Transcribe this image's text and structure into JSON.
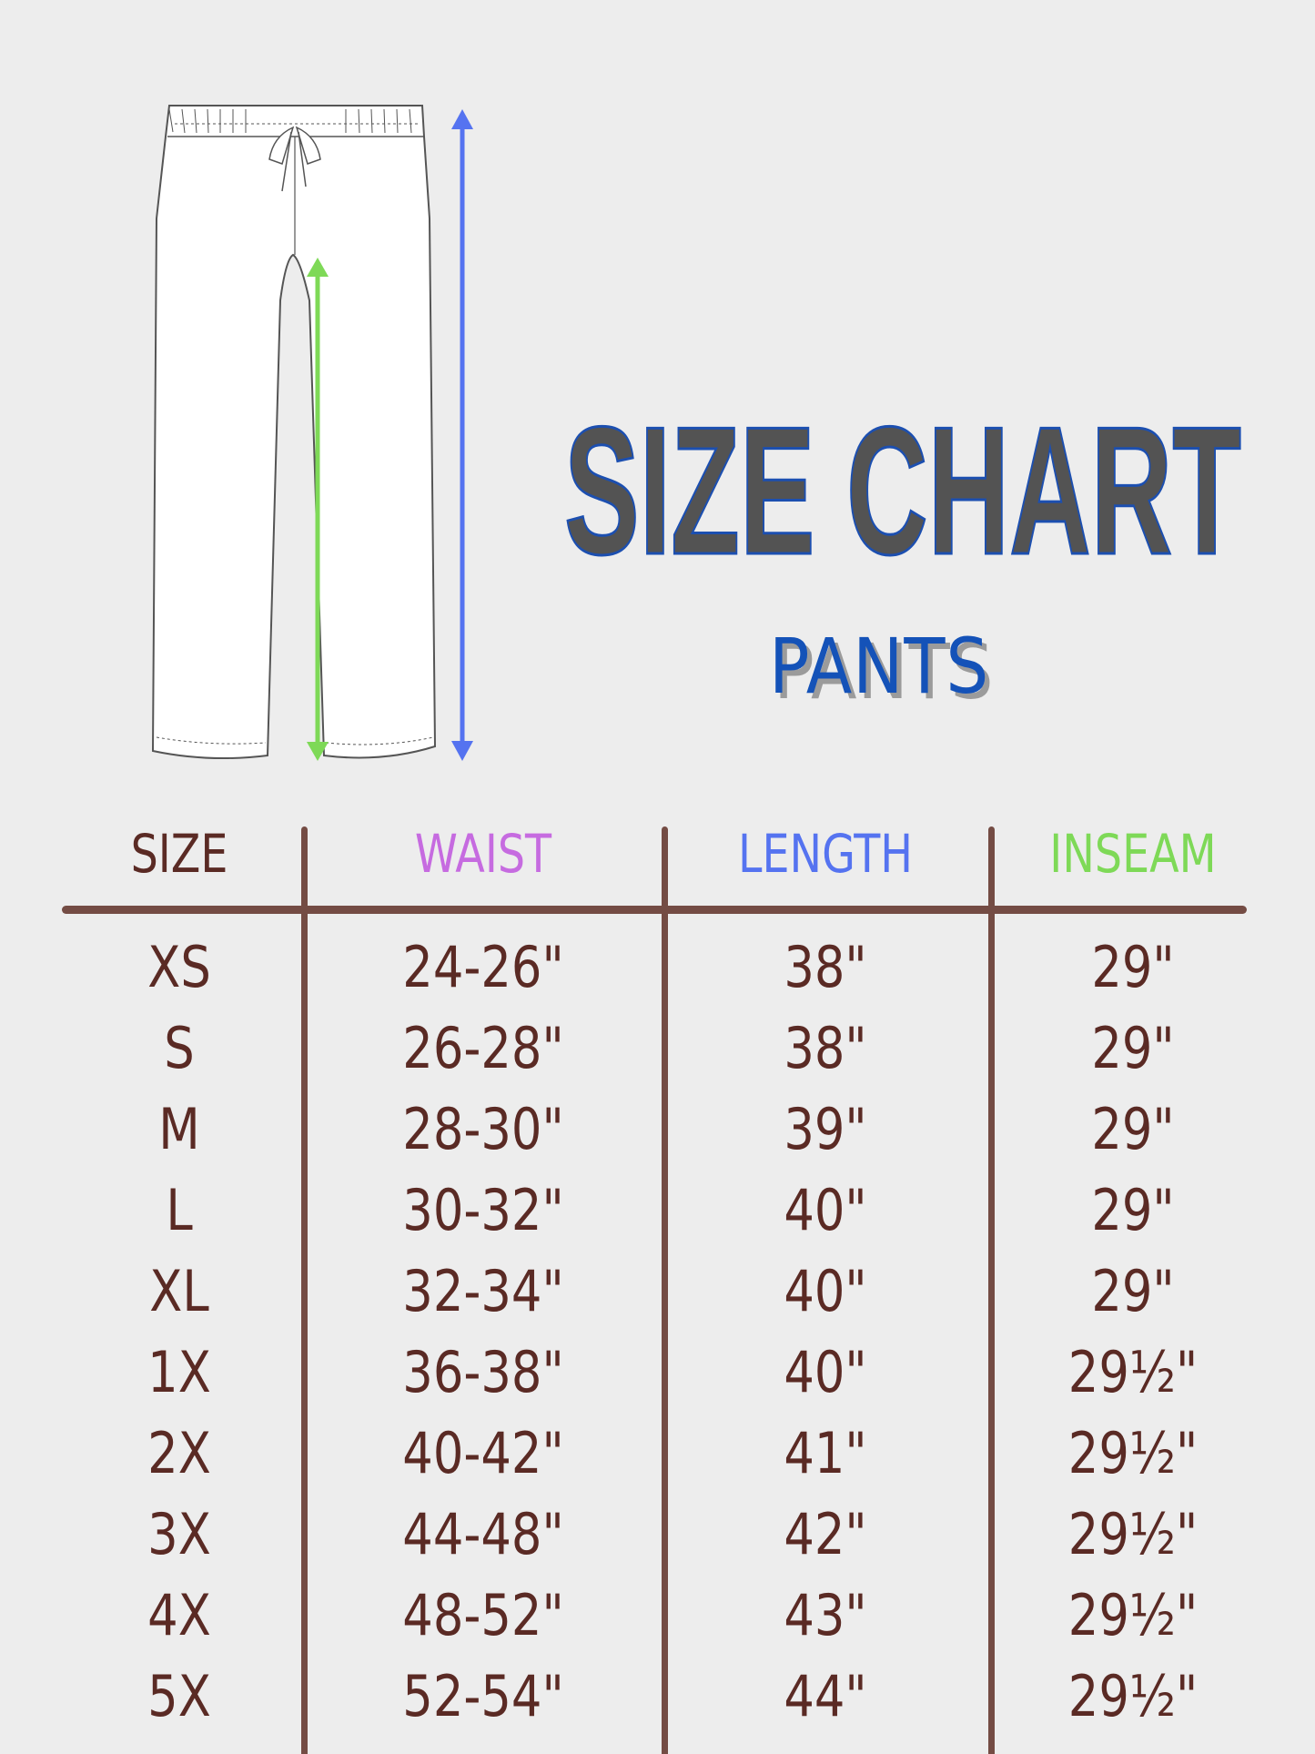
{
  "title": "SIZE CHART",
  "subtitle": "PANTS",
  "colors": {
    "background": "#ededed",
    "title_fill": "#535353",
    "title_outline": "#1c4fb0",
    "subtitle": "#1452b8",
    "rule": "#744c44",
    "text": "#5a2a24",
    "waist": "#c66be0",
    "length": "#5573f0",
    "inseam": "#7ed957"
  },
  "illustration": {
    "garment": "pants-drawing",
    "length_arrow_color": "#5573f0",
    "inseam_arrow_color": "#7ed957"
  },
  "table": {
    "headers": [
      "SIZE",
      "WAIST",
      "LENGTH",
      "INSEAM"
    ],
    "rows": [
      [
        "XS",
        "24-26\"",
        "38\"",
        "29\""
      ],
      [
        "S",
        "26-28\"",
        "38\"",
        "29\""
      ],
      [
        "M",
        "28-30\"",
        "39\"",
        "29\""
      ],
      [
        "L",
        "30-32\"",
        "40\"",
        "29\""
      ],
      [
        "XL",
        "32-34\"",
        "40\"",
        "29\""
      ],
      [
        "1X",
        "36-38\"",
        "40\"",
        "29½\""
      ],
      [
        "2X",
        "40-42\"",
        "41\"",
        "29½\""
      ],
      [
        "3X",
        "44-48\"",
        "42\"",
        "29½\""
      ],
      [
        "4X",
        "48-52\"",
        "43\"",
        "29½\""
      ],
      [
        "5X",
        "52-54\"",
        "44\"",
        "29½\""
      ]
    ]
  }
}
